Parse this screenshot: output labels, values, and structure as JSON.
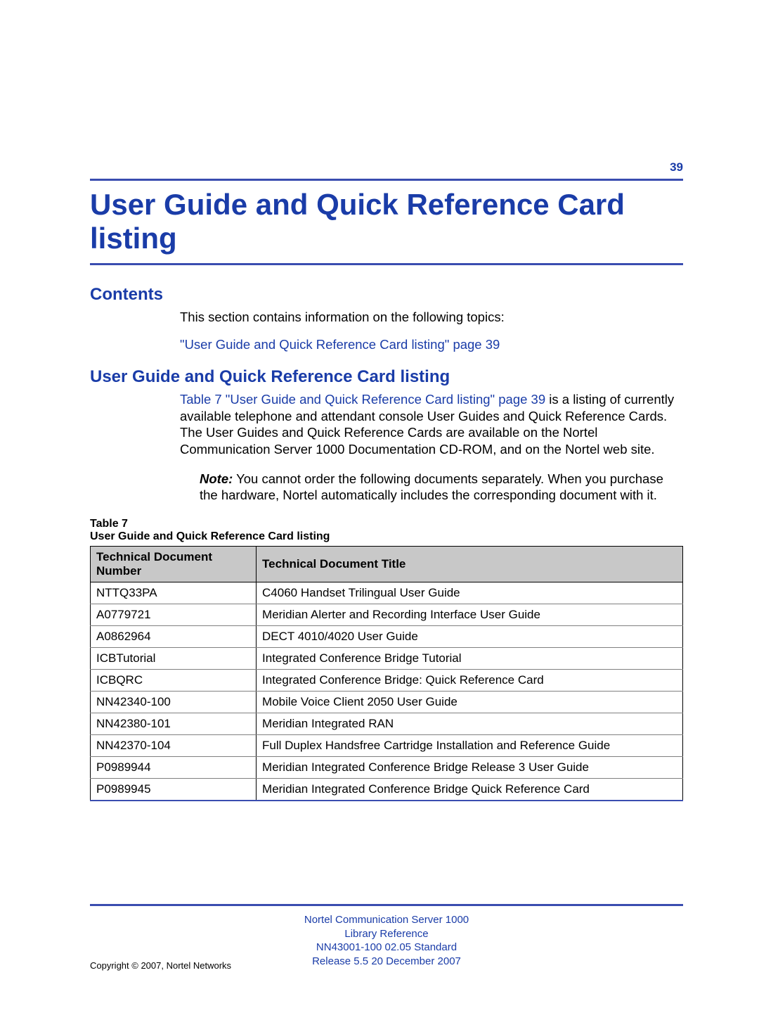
{
  "page_number": "39",
  "title": "User Guide and Quick Reference Card listing",
  "contents": {
    "heading": "Contents",
    "intro": "This section contains information on the following topics:",
    "link": "\"User Guide and Quick Reference Card listing\" page 39"
  },
  "section": {
    "heading": "User Guide and Quick Reference Card listing",
    "para_link_prefix": "Table 7 \"User Guide and Quick Reference Card listing\" page 39",
    "para_after_link": " is a listing of currently available telephone and attendant console User Guides and Quick Reference Cards. The User Guides and Quick Reference Cards are available on the Nortel Communication Server 1000 Documentation CD-ROM, and on the Nortel web site.",
    "note_label": "Note:",
    "note_text": " You cannot order the following documents separately. When you purchase the hardware, Nortel automatically includes the corresponding document with it."
  },
  "table": {
    "label": "Table 7",
    "caption": "User Guide and Quick Reference Card listing",
    "columns": [
      "Technical Document Number",
      "Technical Document Title"
    ],
    "rows": [
      [
        "NTTQ33PA",
        "C4060 Handset Trilingual User Guide"
      ],
      [
        "A0779721",
        "Meridian Alerter and Recording Interface User Guide"
      ],
      [
        "A0862964",
        "DECT 4010/4020 User Guide"
      ],
      [
        "ICBTutorial",
        "Integrated Conference Bridge Tutorial"
      ],
      [
        "ICBQRC",
        "Integrated Conference Bridge: Quick Reference Card"
      ],
      [
        "NN42340-100",
        "Mobile Voice Client 2050 User Guide"
      ],
      [
        "NN42380-101",
        "Meridian Integrated RAN"
      ],
      [
        "NN42370-104",
        "Full Duplex Handsfree Cartridge Installation and Reference Guide"
      ],
      [
        "P0989944",
        "Meridian Integrated Conference Bridge Release 3 User Guide"
      ],
      [
        "P0989945",
        "Meridian Integrated Conference Bridge Quick Reference Card"
      ]
    ]
  },
  "footer": {
    "line1": "Nortel Communication Server 1000",
    "line2": "Library Reference",
    "line3": "NN43001-100   02.05   Standard",
    "line4": "Release 5.5   20 December 2007",
    "copyright": "Copyright © 2007, Nortel Networks"
  },
  "colors": {
    "brand_blue": "#1a3ca8",
    "rule_blue": "#3a4db0",
    "header_gray": "#c8c8c8",
    "row_border": "#808080"
  }
}
